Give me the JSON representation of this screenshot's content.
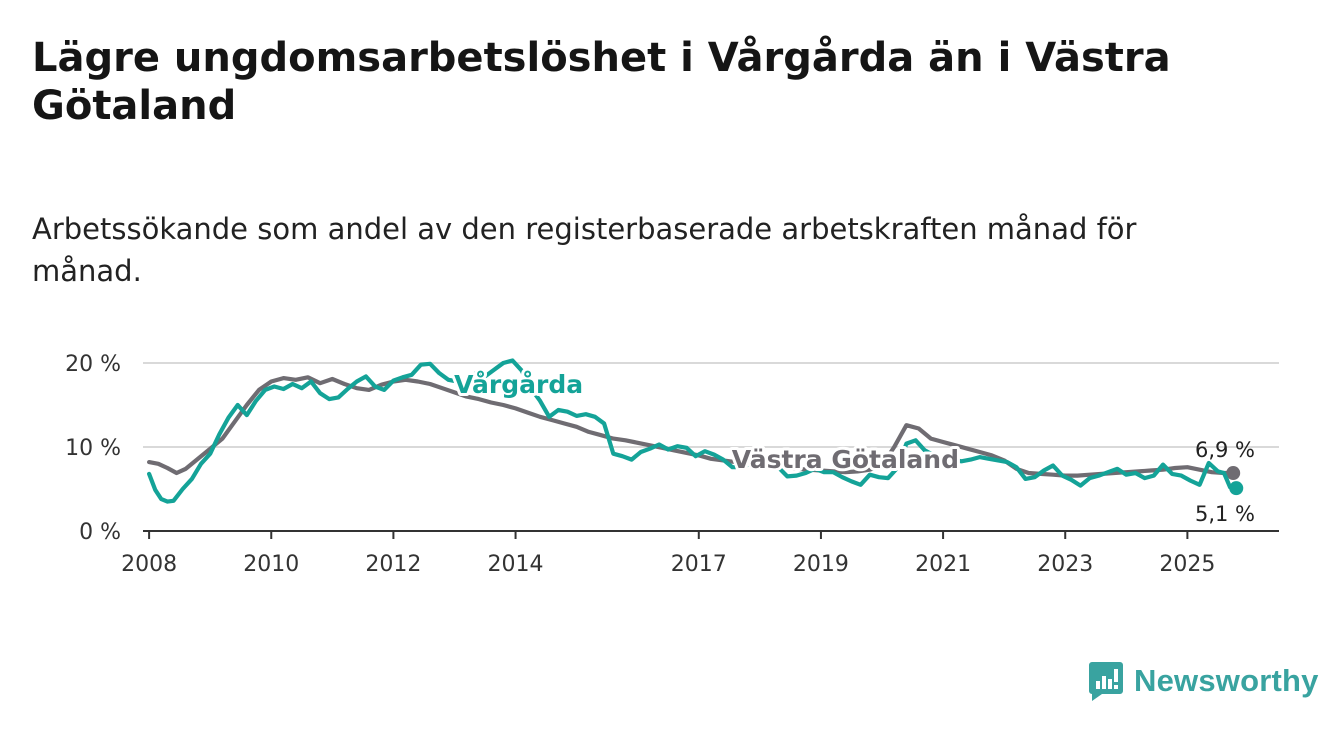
{
  "title": "Lägre ungdomsarbetslöshet i Vårgårda än i Västra Götaland",
  "subtitle": "Arbetssökande som andel av den registerbaserade arbetskraften månad för månad.",
  "brand": {
    "name": "Newsworthy",
    "color": "#39a3a0"
  },
  "colors": {
    "vargarda": "#14a398",
    "vastra_gotaland": "#6f6c72",
    "grid": "#d9d9d9",
    "axis": "#333333"
  },
  "chart_data": {
    "type": "line",
    "title": "Lägre ungdomsarbetslöshet i Vårgårda än i Västra Götaland",
    "xlabel": "",
    "ylabel": "",
    "ylim": [
      0,
      20
    ],
    "xlim": [
      2007.9,
      2026.5
    ],
    "y_ticks": [
      0,
      10,
      20
    ],
    "y_tick_labels": [
      "0 %",
      "10 %",
      "20 %"
    ],
    "x_ticks": [
      2008,
      2010,
      2012,
      2014,
      2017,
      2019,
      2021,
      2023,
      2025
    ],
    "x_tick_labels": [
      "2008",
      "2010",
      "2012",
      "2014",
      "2017",
      "2019",
      "2021",
      "2023",
      "2025"
    ],
    "grid": true,
    "series": [
      {
        "name": "Västra Götaland",
        "label": "Västra Götaland",
        "end_label": "6,9 %",
        "x": [
          2008.0,
          2008.15,
          2008.3,
          2008.45,
          2008.6,
          2008.8,
          2009.0,
          2009.2,
          2009.4,
          2009.6,
          2009.8,
          2010.0,
          2010.2,
          2010.4,
          2010.6,
          2010.8,
          2011.0,
          2011.2,
          2011.4,
          2011.6,
          2011.8,
          2012.0,
          2012.2,
          2012.4,
          2012.6,
          2012.8,
          2013.0,
          2013.2,
          2013.4,
          2013.6,
          2013.8,
          2014.0,
          2014.2,
          2014.4,
          2014.6,
          2014.8,
          2015.0,
          2015.2,
          2015.4,
          2015.6,
          2015.8,
          2016.0,
          2016.2,
          2016.4,
          2016.6,
          2016.8,
          2017.0,
          2017.2,
          2017.4,
          2017.6,
          2017.8,
          2018.0,
          2018.2,
          2018.4,
          2018.6,
          2018.8,
          2019.0,
          2019.2,
          2019.4,
          2019.6,
          2019.8,
          2020.0,
          2020.2,
          2020.4,
          2020.6,
          2020.8,
          2021.0,
          2021.2,
          2021.4,
          2021.6,
          2021.8,
          2022.0,
          2022.2,
          2022.4,
          2022.6,
          2022.8,
          2023.0,
          2023.2,
          2023.4,
          2023.6,
          2023.8,
          2024.0,
          2024.2,
          2024.4,
          2024.6,
          2024.8,
          2025.0,
          2025.2,
          2025.4,
          2025.6,
          2025.75
        ],
        "values": [
          8.2,
          8.0,
          7.5,
          6.9,
          7.4,
          8.6,
          9.8,
          11.0,
          13.0,
          15.0,
          16.8,
          17.8,
          18.2,
          18.0,
          18.3,
          17.6,
          18.1,
          17.5,
          17.0,
          16.8,
          17.4,
          17.8,
          18.0,
          17.8,
          17.5,
          17.0,
          16.5,
          16.0,
          15.7,
          15.3,
          15.0,
          14.6,
          14.1,
          13.6,
          13.2,
          12.8,
          12.4,
          11.8,
          11.4,
          11.0,
          10.8,
          10.5,
          10.2,
          9.9,
          9.6,
          9.3,
          9.0,
          8.6,
          8.4,
          8.2,
          8.0,
          7.8,
          7.6,
          7.5,
          7.4,
          7.3,
          7.2,
          7.1,
          7.0,
          7.1,
          7.3,
          7.8,
          10.0,
          12.6,
          12.2,
          11.0,
          10.6,
          10.2,
          9.8,
          9.4,
          9.0,
          8.4,
          7.4,
          6.9,
          6.8,
          6.7,
          6.6,
          6.6,
          6.7,
          6.8,
          6.9,
          7.0,
          7.1,
          7.2,
          7.3,
          7.5,
          7.6,
          7.3,
          7.0,
          6.9,
          6.9
        ]
      },
      {
        "name": "Vårgårda",
        "label": "Vårgårda",
        "end_label": "5,1 %",
        "x": [
          2008.0,
          2008.1,
          2008.2,
          2008.3,
          2008.4,
          2008.55,
          2008.7,
          2008.85,
          2009.0,
          2009.15,
          2009.3,
          2009.45,
          2009.6,
          2009.75,
          2009.9,
          2010.05,
          2010.2,
          2010.35,
          2010.5,
          2010.65,
          2010.8,
          2010.95,
          2011.1,
          2011.25,
          2011.4,
          2011.55,
          2011.7,
          2011.85,
          2012.0,
          2012.15,
          2012.3,
          2012.45,
          2012.6,
          2012.75,
          2012.9,
          2013.05,
          2013.2,
          2013.35,
          2013.5,
          2013.65,
          2013.8,
          2013.95,
          2014.1,
          2014.25,
          2014.4,
          2014.55,
          2014.7,
          2014.85,
          2015.0,
          2015.15,
          2015.3,
          2015.45,
          2015.6,
          2015.75,
          2015.9,
          2016.05,
          2016.2,
          2016.35,
          2016.5,
          2016.65,
          2016.8,
          2016.95,
          2017.1,
          2017.25,
          2017.4,
          2017.55,
          2017.7,
          2017.85,
          2018.0,
          2018.15,
          2018.3,
          2018.45,
          2018.6,
          2018.75,
          2018.9,
          2019.05,
          2019.2,
          2019.35,
          2019.5,
          2019.65,
          2019.8,
          2019.95,
          2020.1,
          2020.25,
          2020.4,
          2020.55,
          2020.7,
          2020.85,
          2021.0,
          2021.15,
          2021.3,
          2021.45,
          2021.6,
          2021.75,
          2021.9,
          2022.05,
          2022.2,
          2022.35,
          2022.5,
          2022.65,
          2022.8,
          2022.95,
          2023.1,
          2023.25,
          2023.4,
          2023.55,
          2023.7,
          2023.85,
          2024.0,
          2024.15,
          2024.3,
          2024.45,
          2024.6,
          2024.75,
          2024.9,
          2025.05,
          2025.2,
          2025.35,
          2025.5,
          2025.6,
          2025.7,
          2025.8
        ],
        "values": [
          6.8,
          4.9,
          3.8,
          3.5,
          3.6,
          5.0,
          6.2,
          8.0,
          9.2,
          11.5,
          13.5,
          15.0,
          13.8,
          15.5,
          16.8,
          17.2,
          16.9,
          17.5,
          17.0,
          17.8,
          16.4,
          15.7,
          15.9,
          16.9,
          17.8,
          18.4,
          17.2,
          16.8,
          17.9,
          18.3,
          18.6,
          19.8,
          19.9,
          18.8,
          18.0,
          17.8,
          17.6,
          18.8,
          18.4,
          19.2,
          20.0,
          20.3,
          19.1,
          17.0,
          15.5,
          13.6,
          14.4,
          14.2,
          13.7,
          13.9,
          13.6,
          12.8,
          9.2,
          8.9,
          8.5,
          9.4,
          9.8,
          10.3,
          9.7,
          10.1,
          9.9,
          8.9,
          9.5,
          9.1,
          8.5,
          7.6,
          7.6,
          8.0,
          8.8,
          8.0,
          7.6,
          6.5,
          6.6,
          6.9,
          7.4,
          7.0,
          7.0,
          6.4,
          5.9,
          5.5,
          6.7,
          6.4,
          6.3,
          7.5,
          10.4,
          10.8,
          9.6,
          9.0,
          8.7,
          8.5,
          8.3,
          8.5,
          8.8,
          8.6,
          8.4,
          8.2,
          7.6,
          6.2,
          6.4,
          7.2,
          7.8,
          6.6,
          6.1,
          5.4,
          6.3,
          6.6,
          7.0,
          7.4,
          6.7,
          6.9,
          6.3,
          6.6,
          7.9,
          6.8,
          6.6,
          6.0,
          5.5,
          8.1,
          7.1,
          6.9,
          5.2,
          5.1
        ]
      }
    ]
  }
}
